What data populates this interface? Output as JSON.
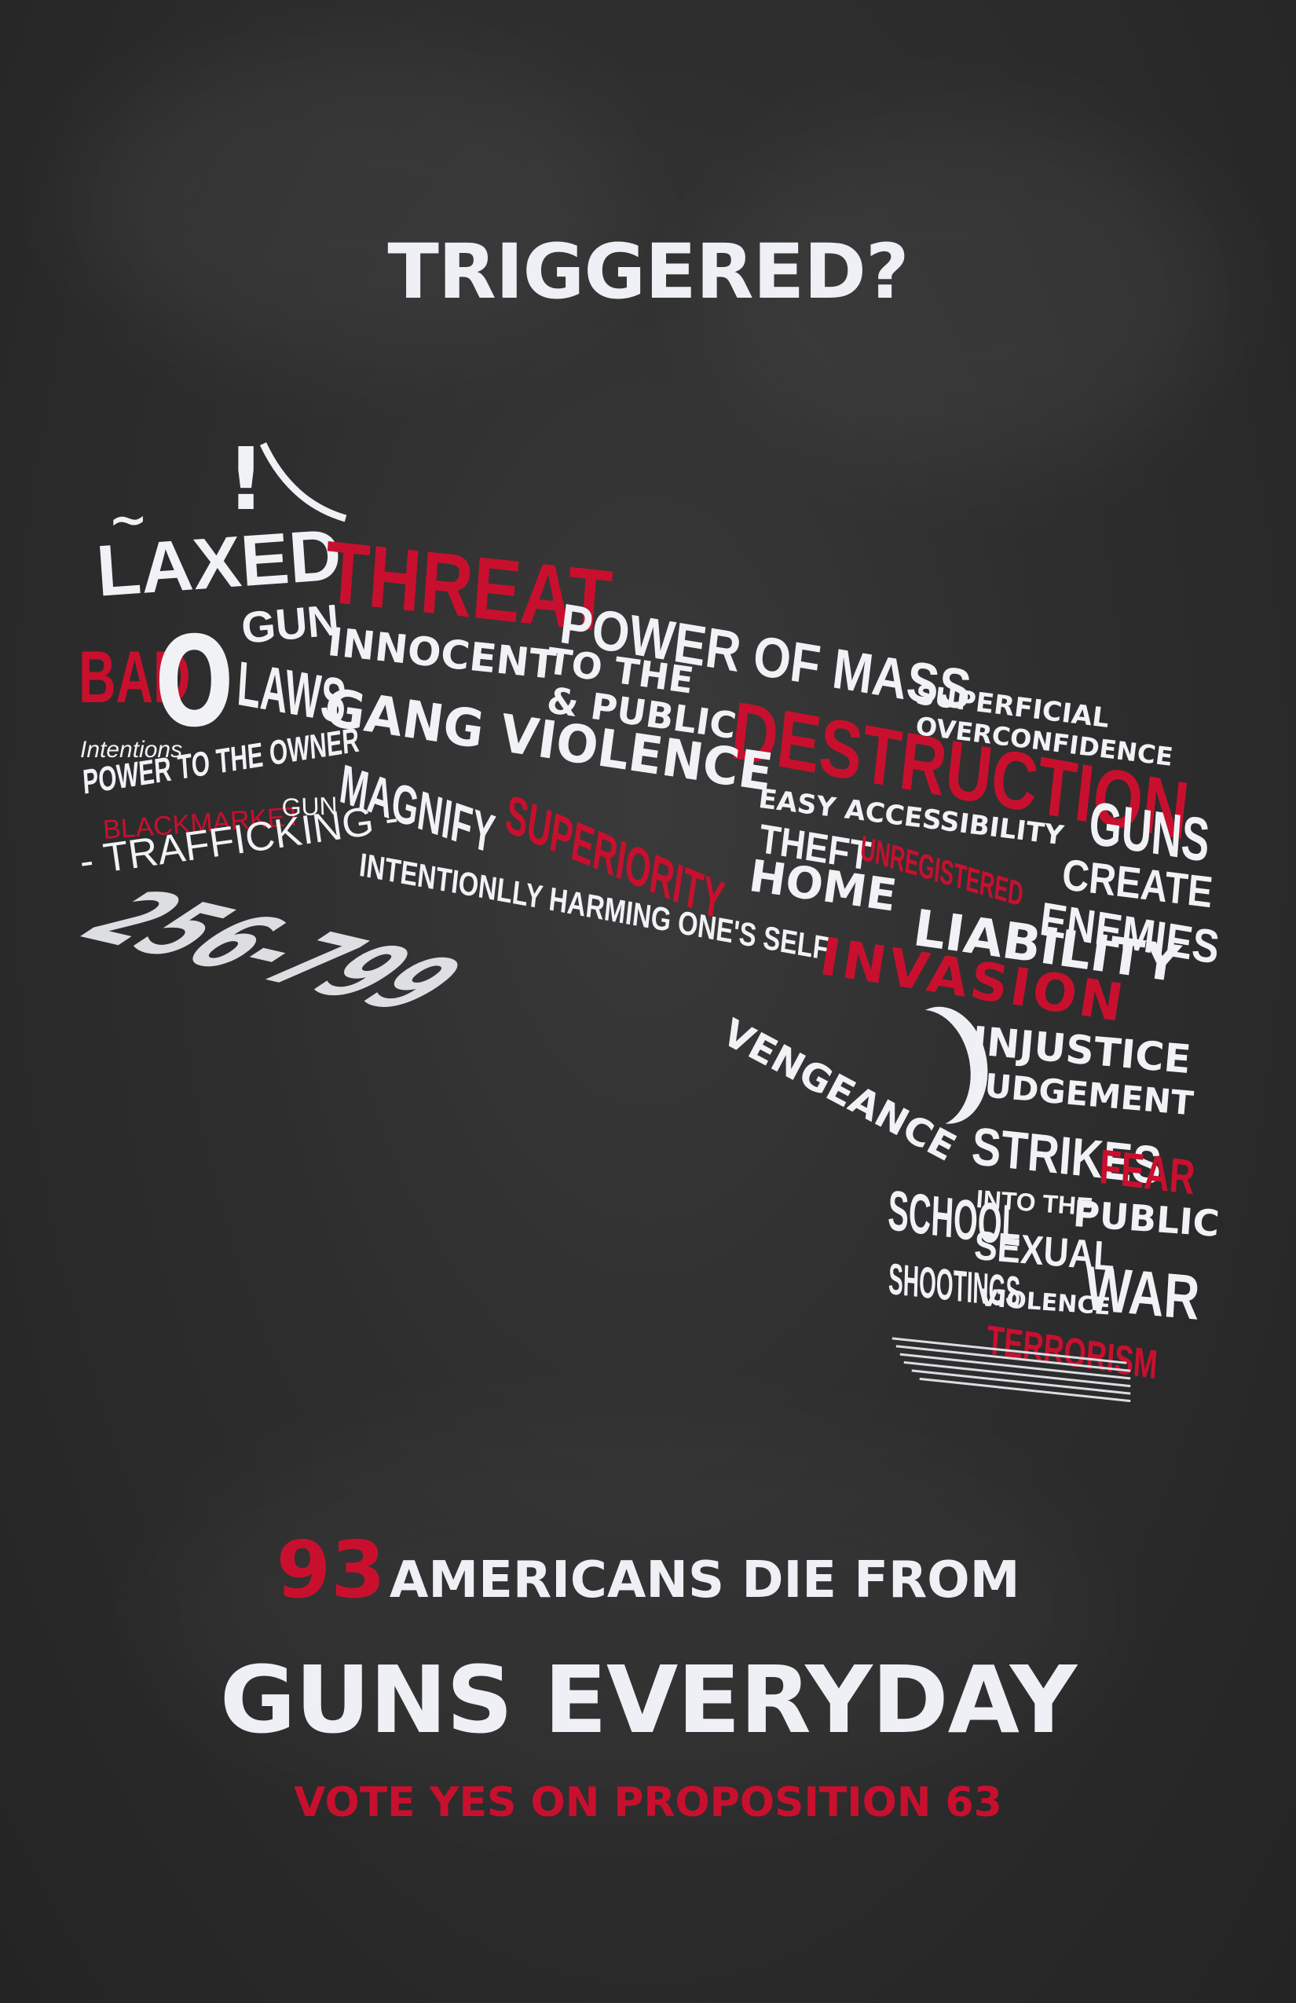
{
  "headline": "TRIGGERED?",
  "gun_words": {
    "exclaim": "!",
    "laxed": "LAXED",
    "tilde": "~",
    "bad": "BAD",
    "o": "O",
    "gun": "GUN",
    "laws": "LAWS",
    "intentions": "Intentions",
    "power_owner": "POWER TO THE OWNER",
    "blackmarket": "BLACKMARKET",
    "gun2": "GUN",
    "trafficking": "- TRAFFICKING -",
    "threat": "THREAT",
    "power_of_mass": "POWER OF MASS",
    "innocent": "INNOCENT",
    "to_the": "TO THE",
    "amp_public": "& PUBLIC",
    "superficial": "SUPERFICIAL",
    "overconfidence": "OVERCONFIDENCE",
    "destruction": "DESTRUCTION",
    "gang_violence": "GANG VIOLENCE",
    "guns": "GUNS",
    "magnify": "MAGNIFY",
    "superiority": "SUPERIORITY",
    "easy_access": "EASY ACCESSIBILITY",
    "theft": "THEFT",
    "unregistered": "UNREGISTERED",
    "create": "CREATE",
    "home": "HOME",
    "intentionally": "INTENTIONLLY HARMING ONE'S SELF",
    "enemies": "ENEMIES",
    "liability": "LIABILITY",
    "invasion": "INVASION",
    "serial": "256-799",
    "vengeance": "VENGEANCE",
    "injustice": "INJUSTICE",
    "judgement": "JUDGEMENT",
    "strikes": "STRIKES",
    "fear": "FEAR",
    "school": "SCHOOL",
    "into_the": "INTO THE",
    "public": "PUBLIC",
    "sexual": "SEXUAL",
    "shootings": "SHOOTINGS",
    "violence": "VIOLENCE",
    "war": "WAR",
    "terrorism": "TERRORISM"
  },
  "stat": {
    "number": "93",
    "line1": "AMERICANS DIE FROM",
    "line2": "GUNS EVERYDAY"
  },
  "call_to_action": "VOTE YES ON PROPOSITION 63",
  "colors": {
    "background": "#2e2e2e",
    "accent_red": "#c8102e",
    "text_white": "#eef0f6"
  }
}
